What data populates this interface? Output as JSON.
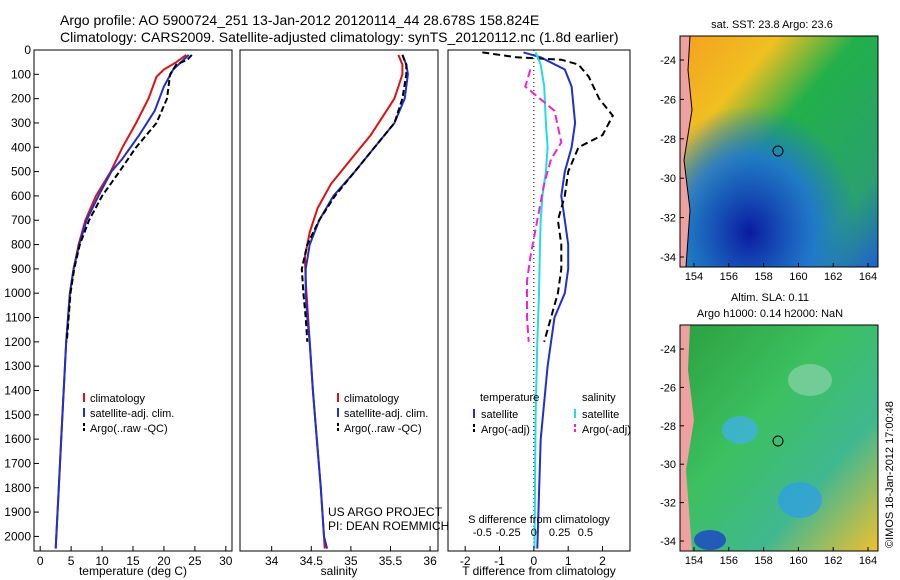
{
  "header": {
    "line1": "Argo profile: AO 5900724_251 13-Jan-2012 20120114_44 28.678S 158.824E",
    "line2": "Climatology: CARS2009. Satellite-adjusted climatology: synTS_20120112.nc (1.8d earlier)"
  },
  "colors": {
    "clim": "#dd1111",
    "sat": "#1f2fd0",
    "argo": "#000000",
    "cyan": "#22dddd",
    "magenta": "#ee22dd"
  },
  "chart_data": [
    {
      "type": "line",
      "xlabel": "temperature (deg C)",
      "xlim": [
        -1,
        31
      ],
      "xticks": [
        0,
        5,
        10,
        15,
        20,
        25,
        30
      ],
      "ylim": [
        0,
        2060
      ],
      "yticks": [
        0,
        100,
        200,
        300,
        400,
        500,
        600,
        700,
        800,
        900,
        1000,
        1100,
        1200,
        1300,
        1400,
        1500,
        1600,
        1700,
        1800,
        1900,
        2000
      ],
      "legend": [
        "climatology",
        "satellite-adj. clim.",
        "Argo(..raw -QC)"
      ],
      "series": [
        {
          "name": "climatology",
          "color": "clim",
          "dash": "",
          "points": [
            [
              23.6,
              20
            ],
            [
              22,
              50
            ],
            [
              20,
              80
            ],
            [
              18.8,
              110
            ],
            [
              17.5,
              200
            ],
            [
              15.5,
              300
            ],
            [
              13.3,
              400
            ],
            [
              11.4,
              500
            ],
            [
              9,
              600
            ],
            [
              7.3,
              700
            ],
            [
              6.2,
              800
            ],
            [
              5.4,
              900
            ],
            [
              4.8,
              1000
            ],
            [
              4.2,
              1200
            ],
            [
              3.8,
              1400
            ],
            [
              3.4,
              1600
            ],
            [
              3.0,
              1800
            ],
            [
              2.6,
              2000
            ],
            [
              2.5,
              2050
            ]
          ]
        },
        {
          "name": "satellite-adj. clim.",
          "color": "sat",
          "dash": "",
          "points": [
            [
              24,
              20
            ],
            [
              23,
              45
            ],
            [
              21.5,
              80
            ],
            [
              20,
              150
            ],
            [
              18.5,
              250
            ],
            [
              16,
              350
            ],
            [
              13.2,
              450
            ],
            [
              11.5,
              500
            ],
            [
              9.4,
              600
            ],
            [
              7.5,
              700
            ],
            [
              6.3,
              800
            ],
            [
              5.4,
              900
            ],
            [
              4.8,
              1000
            ],
            [
              4.2,
              1200
            ],
            [
              3.8,
              1400
            ],
            [
              3.4,
              1600
            ],
            [
              3.0,
              1800
            ],
            [
              2.6,
              2000
            ],
            [
              2.5,
              2050
            ]
          ]
        },
        {
          "name": "Argo(..raw -QC)",
          "color": "argo",
          "dash": "6,3",
          "points": [
            [
              24.5,
              20
            ],
            [
              23.8,
              40
            ],
            [
              22,
              60
            ],
            [
              21,
              100
            ],
            [
              20.5,
              200
            ],
            [
              18.8,
              300
            ],
            [
              15.5,
              400
            ],
            [
              12.8,
              500
            ],
            [
              10,
              600
            ],
            [
              7.9,
              700
            ],
            [
              6.4,
              800
            ],
            [
              5.5,
              900
            ],
            [
              4.9,
              1000
            ],
            [
              4.3,
              1200
            ]
          ]
        }
      ]
    },
    {
      "type": "line",
      "xlabel": "salinity",
      "xlim": [
        33.6,
        36.1
      ],
      "xticks": [
        34,
        34.5,
        35,
        35.5,
        36
      ],
      "ylim": [
        0,
        2060
      ],
      "legend": [
        "climatology",
        "satellite-adj. clim.",
        "Argo(..raw -QC)"
      ],
      "series": [
        {
          "name": "climatology",
          "color": "clim",
          "dash": "",
          "points": [
            [
              35.6,
              20
            ],
            [
              35.65,
              60
            ],
            [
              35.65,
              100
            ],
            [
              35.6,
              150
            ],
            [
              35.55,
              200
            ],
            [
              35.45,
              250
            ],
            [
              35.25,
              350
            ],
            [
              35.0,
              450
            ],
            [
              34.75,
              550
            ],
            [
              34.58,
              650
            ],
            [
              34.48,
              750
            ],
            [
              34.42,
              850
            ],
            [
              34.43,
              950
            ],
            [
              34.45,
              1050
            ],
            [
              34.48,
              1200
            ],
            [
              34.52,
              1400
            ],
            [
              34.57,
              1600
            ],
            [
              34.62,
              1800
            ],
            [
              34.66,
              2000
            ],
            [
              34.67,
              2050
            ]
          ]
        },
        {
          "name": "satellite-adj. clim.",
          "color": "sat",
          "dash": "",
          "points": [
            [
              35.65,
              20
            ],
            [
              35.7,
              60
            ],
            [
              35.72,
              100
            ],
            [
              35.68,
              200
            ],
            [
              35.55,
              300
            ],
            [
              35.3,
              400
            ],
            [
              35.05,
              500
            ],
            [
              34.78,
              600
            ],
            [
              34.6,
              700
            ],
            [
              34.48,
              800
            ],
            [
              34.43,
              900
            ],
            [
              34.43,
              1000
            ],
            [
              34.45,
              1100
            ],
            [
              34.48,
              1200
            ],
            [
              34.52,
              1400
            ],
            [
              34.57,
              1600
            ],
            [
              34.62,
              1800
            ],
            [
              34.66,
              2000
            ],
            [
              34.7,
              2050
            ]
          ]
        },
        {
          "name": "Argo(..raw -QC)",
          "color": "argo",
          "dash": "6,3",
          "points": [
            [
              35.65,
              20
            ],
            [
              35.7,
              60
            ],
            [
              35.7,
              100
            ],
            [
              35.65,
              200
            ],
            [
              35.55,
              300
            ],
            [
              35.3,
              400
            ],
            [
              35.05,
              500
            ],
            [
              34.8,
              600
            ],
            [
              34.6,
              700
            ],
            [
              34.45,
              800
            ],
            [
              34.38,
              900
            ],
            [
              34.4,
              1000
            ],
            [
              34.43,
              1100
            ],
            [
              34.45,
              1200
            ]
          ]
        }
      ]
    },
    {
      "type": "line",
      "xlabel": "T difference from climatology",
      "xlabel2": "S difference from climatology",
      "xlim": [
        -2.5,
        2.8
      ],
      "xticks": [
        -2,
        -1,
        0,
        1,
        2
      ],
      "xticks_top": [
        {
          "v": -1.5,
          "label": "-0.5"
        },
        {
          "v": -0.75,
          "label": "-0.25"
        },
        {
          "v": 0,
          "label": "0"
        },
        {
          "v": 0.75,
          "label": "0.25"
        },
        {
          "v": 1.5,
          "label": "0.5"
        }
      ],
      "ylim": [
        0,
        2060
      ],
      "legend_titles": [
        "temperature",
        "salinity"
      ],
      "legend_t": [
        "satellite",
        "Argo(-adj)"
      ],
      "legend_s": [
        "satellite",
        "Argo(-adj)"
      ],
      "series": [
        {
          "name": "T satellite",
          "color": "sat",
          "dash": "",
          "points": [
            [
              -0.3,
              10
            ],
            [
              0.2,
              30
            ],
            [
              0.9,
              80
            ],
            [
              1.1,
              150
            ],
            [
              1.2,
              300
            ],
            [
              1.1,
              400
            ],
            [
              0.9,
              500
            ],
            [
              0.8,
              600
            ],
            [
              0.9,
              700
            ],
            [
              1.0,
              800
            ],
            [
              1.0,
              900
            ],
            [
              0.9,
              1000
            ],
            [
              0.6,
              1100
            ],
            [
              0.4,
              1300
            ],
            [
              0.2,
              1600
            ],
            [
              0.1,
              2050
            ]
          ]
        },
        {
          "name": "T Argo(-adj)",
          "color": "argo",
          "dash": "7,4",
          "points": [
            [
              -1.5,
              10
            ],
            [
              -0.5,
              30
            ],
            [
              0.8,
              40
            ],
            [
              1.3,
              60
            ],
            [
              1.6,
              110
            ],
            [
              1.9,
              200
            ],
            [
              2.3,
              270
            ],
            [
              2.0,
              350
            ],
            [
              1.3,
              400
            ],
            [
              1.0,
              500
            ],
            [
              0.9,
              600
            ],
            [
              0.7,
              700
            ],
            [
              0.8,
              800
            ],
            [
              0.8,
              900
            ],
            [
              0.7,
              1000
            ],
            [
              0.5,
              1100
            ],
            [
              0.3,
              1200
            ]
          ]
        },
        {
          "name": "S satellite",
          "color": "cyan",
          "dash": "",
          "points": [
            [
              0.05,
              10
            ],
            [
              0.2,
              60
            ],
            [
              0.3,
              150
            ],
            [
              0.35,
              300
            ],
            [
              0.4,
              400
            ],
            [
              0.35,
              500
            ],
            [
              0.25,
              600
            ],
            [
              0.2,
              700
            ],
            [
              0.18,
              800
            ],
            [
              0.15,
              1000
            ],
            [
              0.1,
              1200
            ],
            [
              0.05,
              1500
            ],
            [
              0.02,
              2050
            ]
          ]
        },
        {
          "name": "S Argo(-adj)",
          "color": "magenta",
          "dash": "8,4",
          "points": [
            [
              -0.1,
              80
            ],
            [
              -0.25,
              150
            ],
            [
              0.6,
              250
            ],
            [
              0.8,
              380
            ],
            [
              0.5,
              450
            ],
            [
              0.3,
              550
            ],
            [
              0.1,
              700
            ],
            [
              -0.1,
              850
            ],
            [
              -0.2,
              950
            ],
            [
              -0.2,
              1100
            ],
            [
              -0.15,
              1200
            ]
          ]
        }
      ]
    }
  ],
  "maps": [
    {
      "title": "sat. SST: 23.8 Argo: 23.6",
      "xticks": [
        "154",
        "156",
        "158",
        "160",
        "162",
        "164"
      ],
      "yticks": [
        "-24",
        "-26",
        "-28",
        "-30",
        "-32",
        "-34"
      ]
    },
    {
      "title1": "Altim. SLA: 0.11",
      "title2": "Argo h1000: 0.14 h2000: NaN",
      "xticks": [
        "154",
        "156",
        "158",
        "160",
        "162",
        "164"
      ],
      "yticks": [
        "-24",
        "-26",
        "-28",
        "-30",
        "-32",
        "-34"
      ]
    }
  ],
  "annotations": {
    "project": "US ARGO PROJECT",
    "pi": "PI: DEAN ROEMMICH",
    "credit": "©IMOS 18-Jan-2012 17:00:48"
  }
}
